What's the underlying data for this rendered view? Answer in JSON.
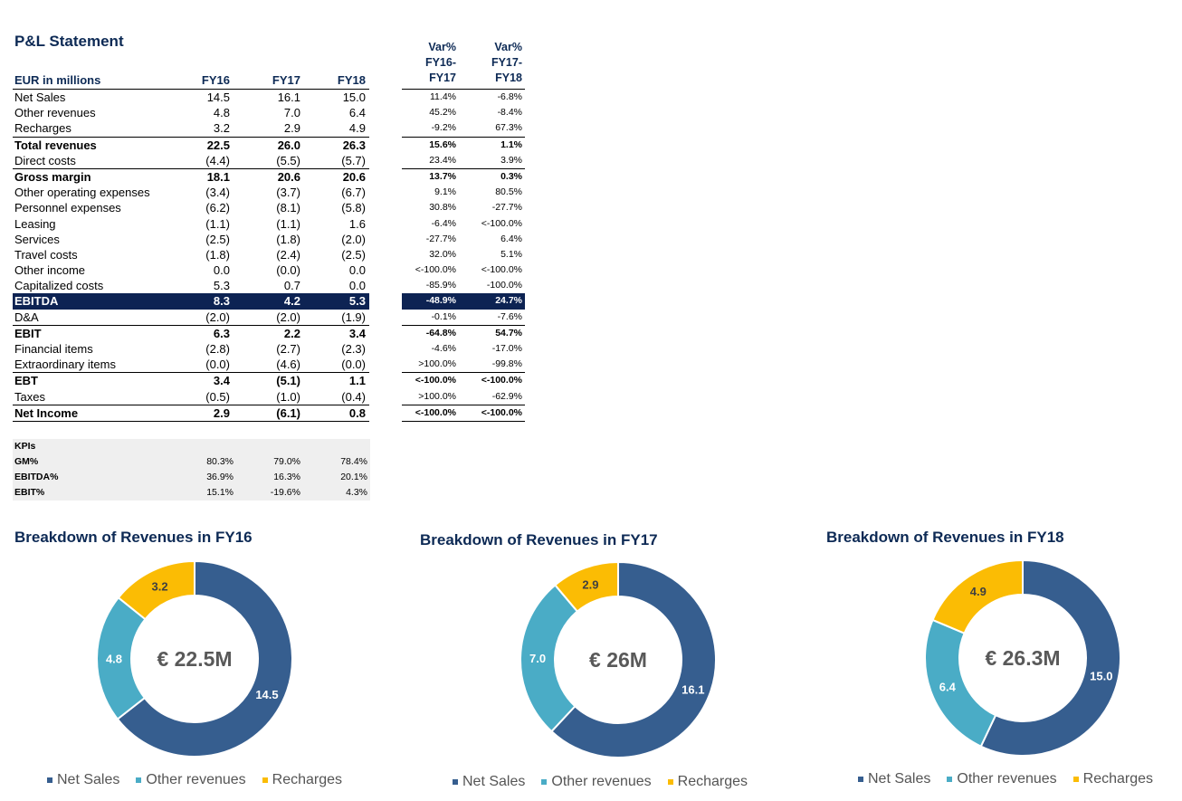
{
  "title": "P&L Statement",
  "colors": {
    "net_sales": "#365e8f",
    "other_revenues": "#4aacc6",
    "recharges": "#fbbc04",
    "ebitda_bg": "#0d2353"
  },
  "pl": {
    "header": {
      "label": "EUR in millions",
      "fy16": "FY16",
      "fy17": "FY17",
      "fy18": "FY18"
    },
    "rows": [
      {
        "label": "Net Sales",
        "fy16": "14.5",
        "fy17": "16.1",
        "fy18": "15.0",
        "style": ""
      },
      {
        "label": "Other revenues",
        "fy16": "4.8",
        "fy17": "7.0",
        "fy18": "6.4",
        "style": ""
      },
      {
        "label": "Recharges",
        "fy16": "3.2",
        "fy17": "2.9",
        "fy18": "4.9",
        "style": ""
      },
      {
        "label": "Total revenues",
        "fy16": "22.5",
        "fy17": "26.0",
        "fy18": "26.3",
        "style": "total"
      },
      {
        "label": "Direct costs",
        "fy16": "(4.4)",
        "fy17": "(5.5)",
        "fy18": "(5.7)",
        "style": ""
      },
      {
        "label": "Gross margin",
        "fy16": "18.1",
        "fy17": "20.6",
        "fy18": "20.6",
        "style": "total"
      },
      {
        "label": "Other operating expenses",
        "fy16": "(3.4)",
        "fy17": "(3.7)",
        "fy18": "(6.7)",
        "style": ""
      },
      {
        "label": "Personnel expenses",
        "fy16": "(6.2)",
        "fy17": "(8.1)",
        "fy18": "(5.8)",
        "style": ""
      },
      {
        "label": "Leasing",
        "fy16": "(1.1)",
        "fy17": "(1.1)",
        "fy18": "1.6",
        "style": ""
      },
      {
        "label": "Services",
        "fy16": "(2.5)",
        "fy17": "(1.8)",
        "fy18": "(2.0)",
        "style": ""
      },
      {
        "label": "Travel costs",
        "fy16": "(1.8)",
        "fy17": "(2.4)",
        "fy18": "(2.5)",
        "style": ""
      },
      {
        "label": "Other income",
        "fy16": "0.0",
        "fy17": "(0.0)",
        "fy18": "0.0",
        "style": ""
      },
      {
        "label": "Capitalized costs",
        "fy16": "5.3",
        "fy17": "0.7",
        "fy18": "0.0",
        "style": ""
      },
      {
        "label": "EBITDA",
        "fy16": "8.3",
        "fy17": "4.2",
        "fy18": "5.3",
        "style": "ebitda"
      },
      {
        "label": "D&A",
        "fy16": "(2.0)",
        "fy17": "(2.0)",
        "fy18": "(1.9)",
        "style": ""
      },
      {
        "label": "EBIT",
        "fy16": "6.3",
        "fy17": "2.2",
        "fy18": "3.4",
        "style": "total"
      },
      {
        "label": "Financial items",
        "fy16": "(2.8)",
        "fy17": "(2.7)",
        "fy18": "(2.3)",
        "style": ""
      },
      {
        "label": "Extraordinary items",
        "fy16": "(0.0)",
        "fy17": "(4.6)",
        "fy18": "(0.0)",
        "style": ""
      },
      {
        "label": "EBT",
        "fy16": "3.4",
        "fy17": "(5.1)",
        "fy18": "1.1",
        "style": "total"
      },
      {
        "label": "Taxes",
        "fy16": "(0.5)",
        "fy17": "(1.0)",
        "fy18": "(0.4)",
        "style": ""
      },
      {
        "label": "Net Income",
        "fy16": "2.9",
        "fy17": "(6.1)",
        "fy18": "0.8",
        "style": "net"
      }
    ]
  },
  "var": {
    "header_a": [
      "Var%",
      "FY16-",
      "FY17"
    ],
    "header_b": [
      "Var%",
      "FY17-",
      "FY18"
    ],
    "rows": [
      [
        "11.4%",
        "-6.8%"
      ],
      [
        "45.2%",
        "-8.4%"
      ],
      [
        "-9.2%",
        "67.3%"
      ],
      [
        "15.6%",
        "1.1%"
      ],
      [
        "23.4%",
        "3.9%"
      ],
      [
        "13.7%",
        "0.3%"
      ],
      [
        "9.1%",
        "80.5%"
      ],
      [
        "30.8%",
        "-27.7%"
      ],
      [
        "-6.4%",
        "<-100.0%"
      ],
      [
        "-27.7%",
        "6.4%"
      ],
      [
        "32.0%",
        "5.1%"
      ],
      [
        "<-100.0%",
        "<-100.0%"
      ],
      [
        "-85.9%",
        "-100.0%"
      ],
      [
        "-48.9%",
        "24.7%"
      ],
      [
        "-0.1%",
        "-7.6%"
      ],
      [
        "-64.8%",
        "54.7%"
      ],
      [
        "-4.6%",
        "-17.0%"
      ],
      [
        ">100.0%",
        "-99.8%"
      ],
      [
        "<-100.0%",
        "<-100.0%"
      ],
      [
        ">100.0%",
        "-62.9%"
      ],
      [
        "<-100.0%",
        "<-100.0%"
      ]
    ]
  },
  "kpis": {
    "title": "KPIs",
    "rows": [
      {
        "label": "GM%",
        "fy16": "80.3%",
        "fy17": "79.0%",
        "fy18": "78.4%"
      },
      {
        "label": "EBITDA%",
        "fy16": "36.9%",
        "fy17": "16.3%",
        "fy18": "20.1%"
      },
      {
        "label": "EBIT%",
        "fy16": "15.1%",
        "fy17": "-19.6%",
        "fy18": "4.3%"
      }
    ]
  },
  "chart_data": [
    {
      "type": "pie",
      "title": "Breakdown of Revenues in FY16",
      "center_label": "€ 22.5M",
      "categories": [
        "Net Sales",
        "Other revenues",
        "Recharges"
      ],
      "values": [
        14.5,
        4.8,
        3.2
      ],
      "labels": [
        "14.5",
        "4.8",
        "3.2"
      ],
      "legend_position": "bottom"
    },
    {
      "type": "pie",
      "title": "Breakdown of Revenues in FY17",
      "center_label": "€ 26M",
      "categories": [
        "Net Sales",
        "Other revenues",
        "Recharges"
      ],
      "values": [
        16.1,
        7.0,
        2.9
      ],
      "labels": [
        "16.1",
        "7.0",
        "2.9"
      ],
      "legend_position": "bottom"
    },
    {
      "type": "pie",
      "title": "Breakdown of Revenues in FY18",
      "center_label": "€ 26.3M",
      "categories": [
        "Net Sales",
        "Other revenues",
        "Recharges"
      ],
      "values": [
        15.0,
        6.4,
        4.9
      ],
      "labels": [
        "15.0",
        "6.4",
        "4.9"
      ],
      "legend_position": "bottom"
    }
  ]
}
